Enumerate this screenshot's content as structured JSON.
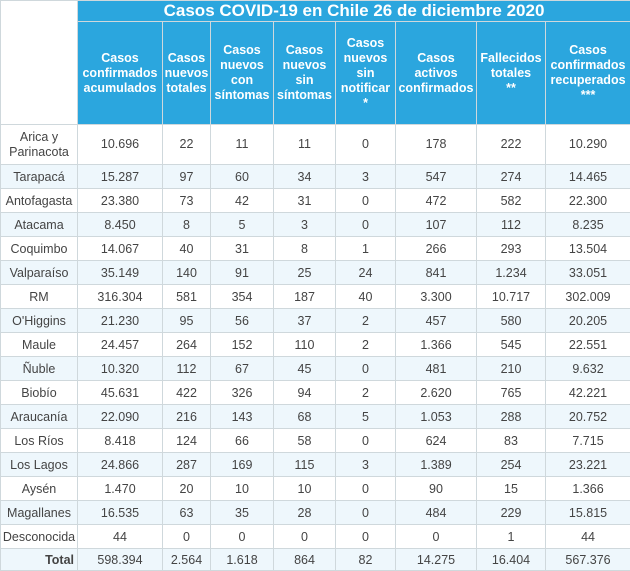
{
  "title": "Casos COVID-19 en Chile 26 de diciembre 2020",
  "table": {
    "headers": [
      "Casos\nconfirmados\nacumulados",
      "Casos\nnuevos\ntotales",
      "Casos\nnuevos\ncon\nsíntomas",
      "Casos\nnuevos\nsin\nsíntomas",
      "Casos\nnuevos\nsin\nnotificar\n*",
      "Casos\nactivos\nconfirmados",
      "Fallecidos\ntotales\n**",
      "Casos\nconfirmados\nrecuperados\n***"
    ],
    "rows": [
      [
        "Arica y\nParinacota",
        "10.696",
        "22",
        "11",
        "11",
        "0",
        "178",
        "222",
        "10.290"
      ],
      [
        "Tarapacá",
        "15.287",
        "97",
        "60",
        "34",
        "3",
        "547",
        "274",
        "14.465"
      ],
      [
        "Antofagasta",
        "23.380",
        "73",
        "42",
        "31",
        "0",
        "472",
        "582",
        "22.300"
      ],
      [
        "Atacama",
        "8.450",
        "8",
        "5",
        "3",
        "0",
        "107",
        "112",
        "8.235"
      ],
      [
        "Coquimbo",
        "14.067",
        "40",
        "31",
        "8",
        "1",
        "266",
        "293",
        "13.504"
      ],
      [
        "Valparaíso",
        "35.149",
        "140",
        "91",
        "25",
        "24",
        "841",
        "1.234",
        "33.051"
      ],
      [
        "RM",
        "316.304",
        "581",
        "354",
        "187",
        "40",
        "3.300",
        "10.717",
        "302.009"
      ],
      [
        "O'Higgins",
        "21.230",
        "95",
        "56",
        "37",
        "2",
        "457",
        "580",
        "20.205"
      ],
      [
        "Maule",
        "24.457",
        "264",
        "152",
        "110",
        "2",
        "1.366",
        "545",
        "22.551"
      ],
      [
        "Ñuble",
        "10.320",
        "112",
        "67",
        "45",
        "0",
        "481",
        "210",
        "9.632"
      ],
      [
        "Biobío",
        "45.631",
        "422",
        "326",
        "94",
        "2",
        "2.620",
        "765",
        "42.221"
      ],
      [
        "Araucanía",
        "22.090",
        "216",
        "143",
        "68",
        "5",
        "1.053",
        "288",
        "20.752"
      ],
      [
        "Los Ríos",
        "8.418",
        "124",
        "66",
        "58",
        "0",
        "624",
        "83",
        "7.715"
      ],
      [
        "Los Lagos",
        "24.866",
        "287",
        "169",
        "115",
        "3",
        "1.389",
        "254",
        "23.221"
      ],
      [
        "Aysén",
        "1.470",
        "20",
        "10",
        "10",
        "0",
        "90",
        "15",
        "1.366"
      ],
      [
        "Magallanes",
        "16.535",
        "63",
        "35",
        "28",
        "0",
        "484",
        "229",
        "15.815"
      ],
      [
        "Desconocida",
        "44",
        "0",
        "0",
        "0",
        "0",
        "0",
        "1",
        "44"
      ]
    ],
    "total": [
      "Total",
      "598.394",
      "2.564",
      "1.618",
      "864",
      "82",
      "14.275",
      "16.404",
      "567.376"
    ]
  }
}
